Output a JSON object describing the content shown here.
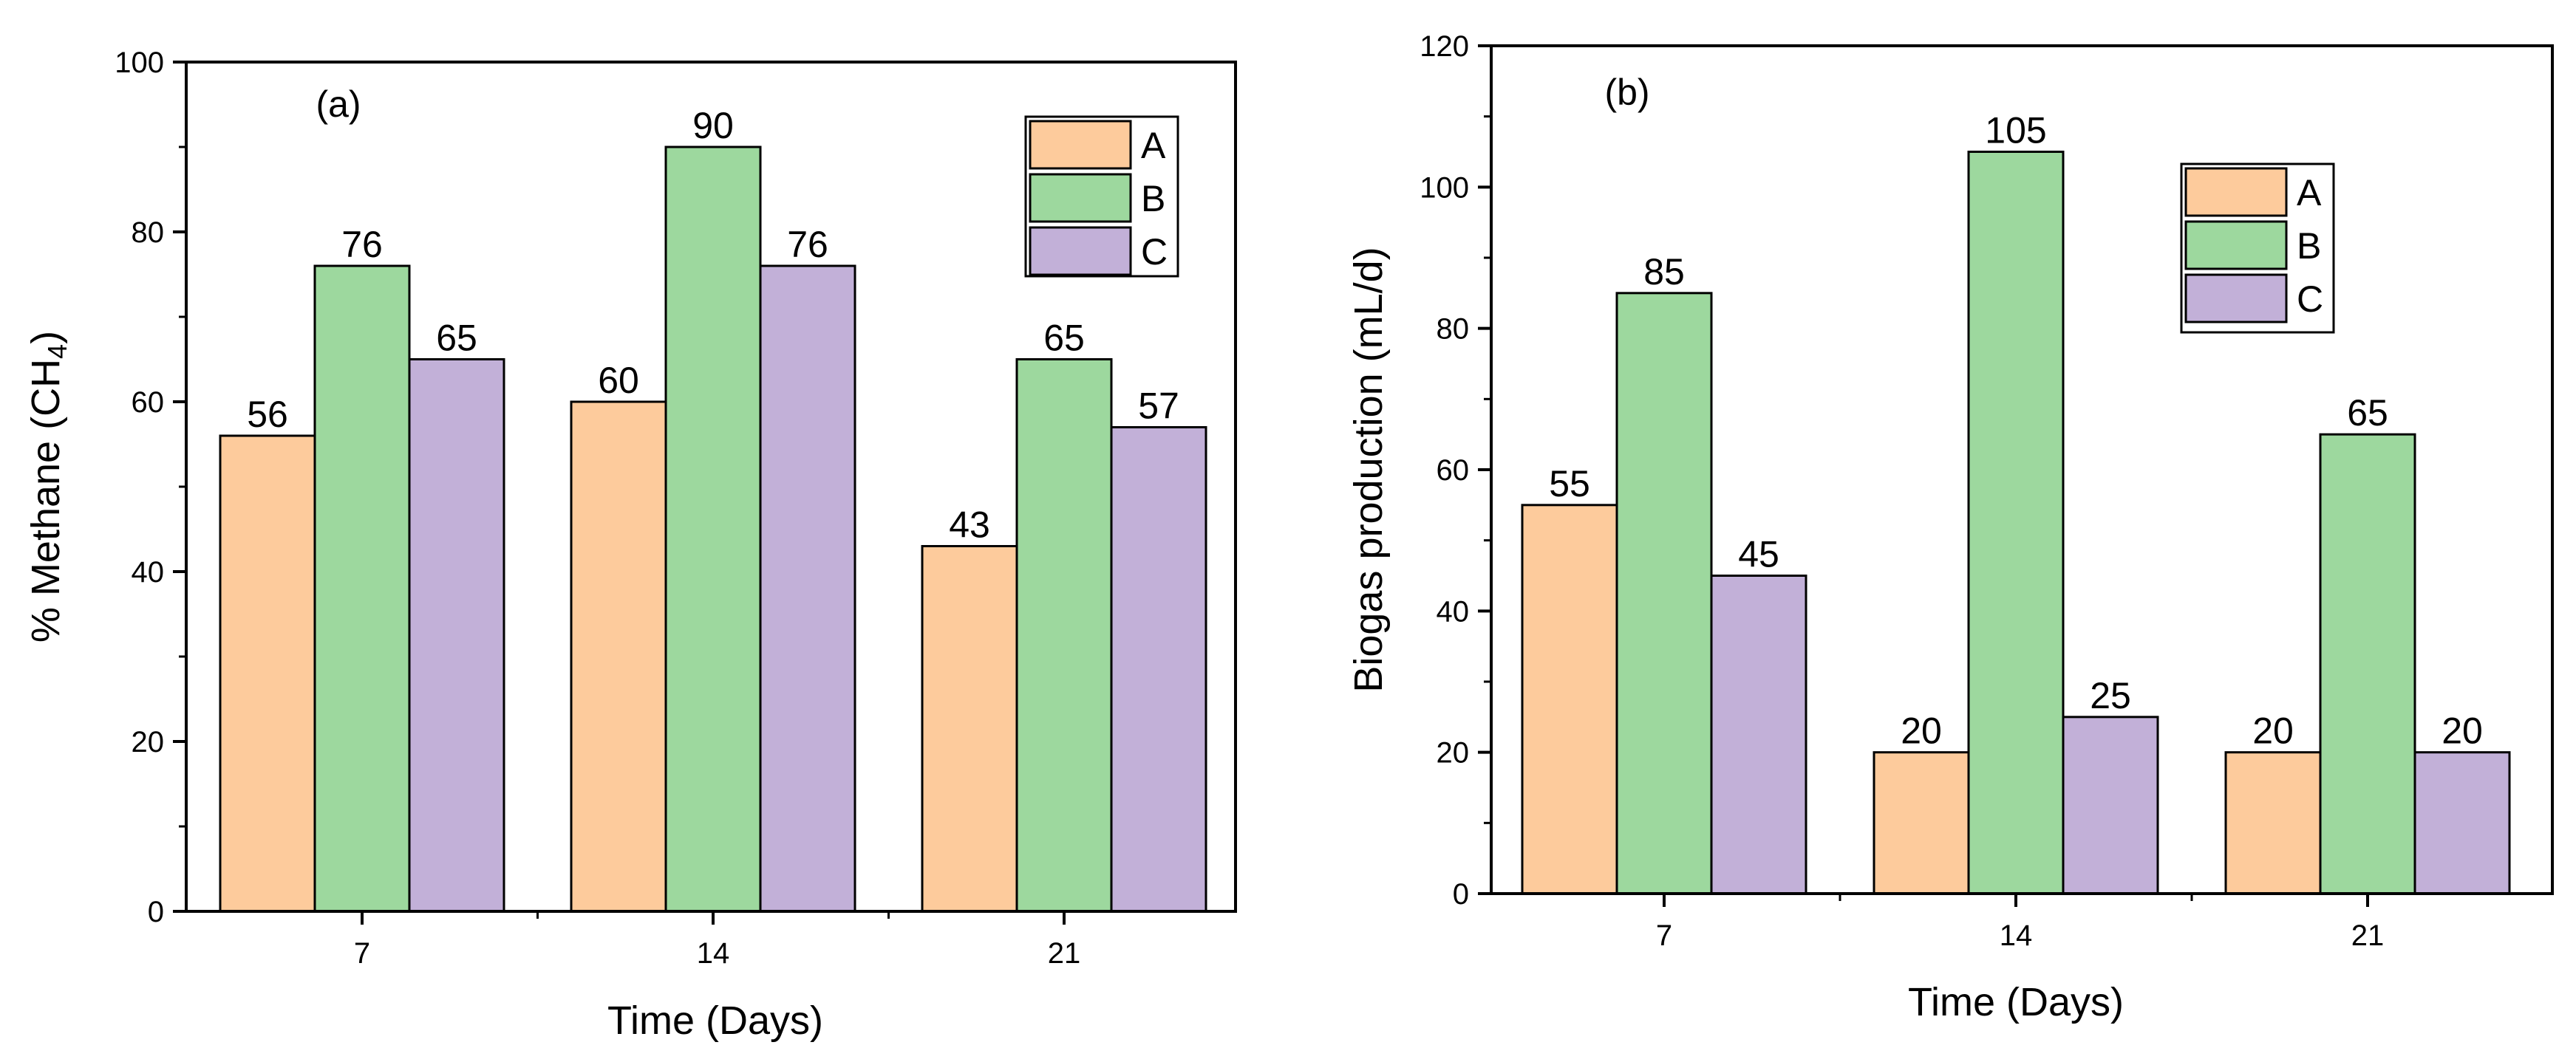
{
  "chart_data": [
    {
      "panel": "(a)",
      "type": "bar",
      "categories": [
        "7",
        "14",
        "21"
      ],
      "series": [
        {
          "name": "A",
          "values": [
            56,
            60,
            43
          ],
          "color": "#FDCB9C"
        },
        {
          "name": "B",
          "values": [
            76,
            90,
            65
          ],
          "color": "#9DD89E"
        },
        {
          "name": "C",
          "values": [
            65,
            76,
            57
          ],
          "color": "#C2B0D8"
        }
      ],
      "xlabel": "Time (Days)",
      "ylabel": {
        "main": "% Methane (CH",
        "subscript": "4",
        "close": ")"
      },
      "ylim": [
        0,
        100
      ],
      "yticks": [
        0,
        20,
        40,
        60,
        80,
        100
      ],
      "legend": "top-right"
    },
    {
      "panel": "(b)",
      "type": "bar",
      "categories": [
        "7",
        "14",
        "21"
      ],
      "series": [
        {
          "name": "A",
          "values": [
            55,
            20,
            20
          ],
          "color": "#FDCB9C"
        },
        {
          "name": "B",
          "values": [
            85,
            105,
            65
          ],
          "color": "#9DD89E"
        },
        {
          "name": "C",
          "values": [
            45,
            25,
            20
          ],
          "color": "#C2B0D8"
        }
      ],
      "xlabel": "Time (Days)",
      "ylabel": "Biogas production (mL/d)",
      "ylim": [
        0,
        120
      ],
      "yticks": [
        0,
        20,
        40,
        60,
        80,
        100,
        120
      ],
      "legend": "top-right"
    }
  ]
}
